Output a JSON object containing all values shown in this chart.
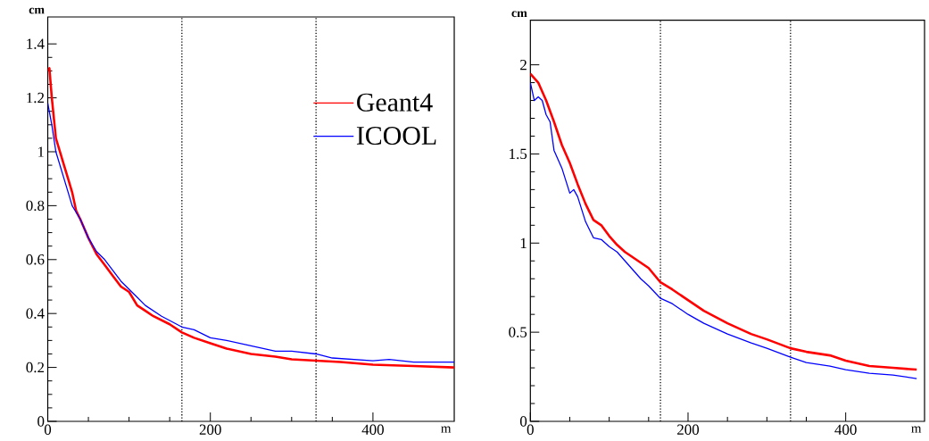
{
  "chart_data": [
    {
      "type": "line",
      "xlabel": "m",
      "ylabel": "cm",
      "xlim": [
        0,
        500
      ],
      "ylim": [
        0,
        1.5
      ],
      "xticks": [
        0,
        200,
        400
      ],
      "yticks": [
        0,
        0.2,
        0.4,
        0.6,
        0.8,
        1,
        1.2,
        1.4
      ],
      "legend": "top right",
      "grid": false,
      "x": [
        0,
        2,
        5,
        10,
        15,
        20,
        25,
        30,
        35,
        40,
        50,
        60,
        70,
        80,
        90,
        100,
        110,
        120,
        130,
        150,
        165,
        180,
        200,
        220,
        250,
        280,
        300,
        330,
        360,
        400,
        450,
        500
      ],
      "series": [
        {
          "name": "Geant4",
          "color": "#ff0000",
          "values": [
            1.3,
            1.31,
            1.2,
            1.05,
            1.0,
            0.95,
            0.9,
            0.85,
            0.78,
            0.75,
            0.68,
            0.62,
            0.58,
            0.54,
            0.5,
            0.48,
            0.43,
            0.41,
            0.39,
            0.36,
            0.33,
            0.31,
            0.29,
            0.27,
            0.25,
            0.24,
            0.23,
            0.225,
            0.22,
            0.21,
            0.205,
            0.2
          ]
        },
        {
          "name": "ICOOL",
          "color": "#0000ff",
          "x": [
            0,
            5,
            10,
            20,
            30,
            40,
            50,
            60,
            70,
            80,
            90,
            100,
            110,
            120,
            140,
            165,
            180,
            200,
            220,
            250,
            280,
            300,
            330,
            350,
            400,
            420,
            450,
            500
          ],
          "values": [
            1.18,
            1.1,
            1.0,
            0.9,
            0.8,
            0.75,
            0.68,
            0.63,
            0.6,
            0.56,
            0.52,
            0.49,
            0.46,
            0.43,
            0.39,
            0.35,
            0.34,
            0.31,
            0.3,
            0.28,
            0.26,
            0.26,
            0.25,
            0.235,
            0.225,
            0.23,
            0.22,
            0.22
          ]
        }
      ],
      "ref_lines": [
        {
          "axis": "x",
          "value": 165,
          "color": "#000000",
          "line_style": "dotted"
        },
        {
          "axis": "x",
          "value": 330,
          "color": "#000000",
          "line_style": "dotted"
        }
      ]
    },
    {
      "type": "line",
      "xlabel": "m",
      "ylabel": "cm",
      "xlim": [
        0,
        500
      ],
      "ylim": [
        0,
        2.25
      ],
      "xticks": [
        0,
        200,
        400
      ],
      "yticks": [
        0,
        0.5,
        1,
        1.5,
        2
      ],
      "legend": false,
      "grid": false,
      "x": [
        0,
        10,
        20,
        30,
        40,
        50,
        60,
        70,
        80,
        90,
        100,
        110,
        120,
        130,
        140,
        150,
        165,
        180,
        200,
        220,
        250,
        280,
        300,
        330,
        350,
        380,
        400,
        430,
        460,
        490
      ],
      "series": [
        {
          "color": "#ff0000",
          "values": [
            1.95,
            1.9,
            1.8,
            1.68,
            1.55,
            1.45,
            1.33,
            1.22,
            1.13,
            1.1,
            1.04,
            0.99,
            0.95,
            0.92,
            0.89,
            0.86,
            0.78,
            0.74,
            0.68,
            0.62,
            0.55,
            0.49,
            0.46,
            0.41,
            0.39,
            0.37,
            0.34,
            0.31,
            0.3,
            0.29
          ]
        },
        {
          "color": "#0000ff",
          "x": [
            0,
            5,
            10,
            15,
            20,
            25,
            30,
            40,
            50,
            55,
            60,
            70,
            80,
            90,
            100,
            110,
            120,
            130,
            140,
            150,
            165,
            180,
            200,
            220,
            250,
            280,
            300,
            330,
            350,
            380,
            400,
            430,
            460,
            490
          ],
          "values": [
            1.9,
            1.8,
            1.82,
            1.8,
            1.72,
            1.68,
            1.52,
            1.42,
            1.28,
            1.3,
            1.26,
            1.12,
            1.03,
            1.02,
            0.98,
            0.95,
            0.9,
            0.85,
            0.8,
            0.76,
            0.69,
            0.66,
            0.6,
            0.55,
            0.49,
            0.44,
            0.41,
            0.36,
            0.33,
            0.31,
            0.29,
            0.27,
            0.26,
            0.24
          ]
        }
      ],
      "ref_lines": [
        {
          "axis": "x",
          "value": 165,
          "color": "#000000",
          "line_style": "dotted"
        },
        {
          "axis": "x",
          "value": 330,
          "color": "#000000",
          "line_style": "dotted"
        }
      ]
    }
  ]
}
